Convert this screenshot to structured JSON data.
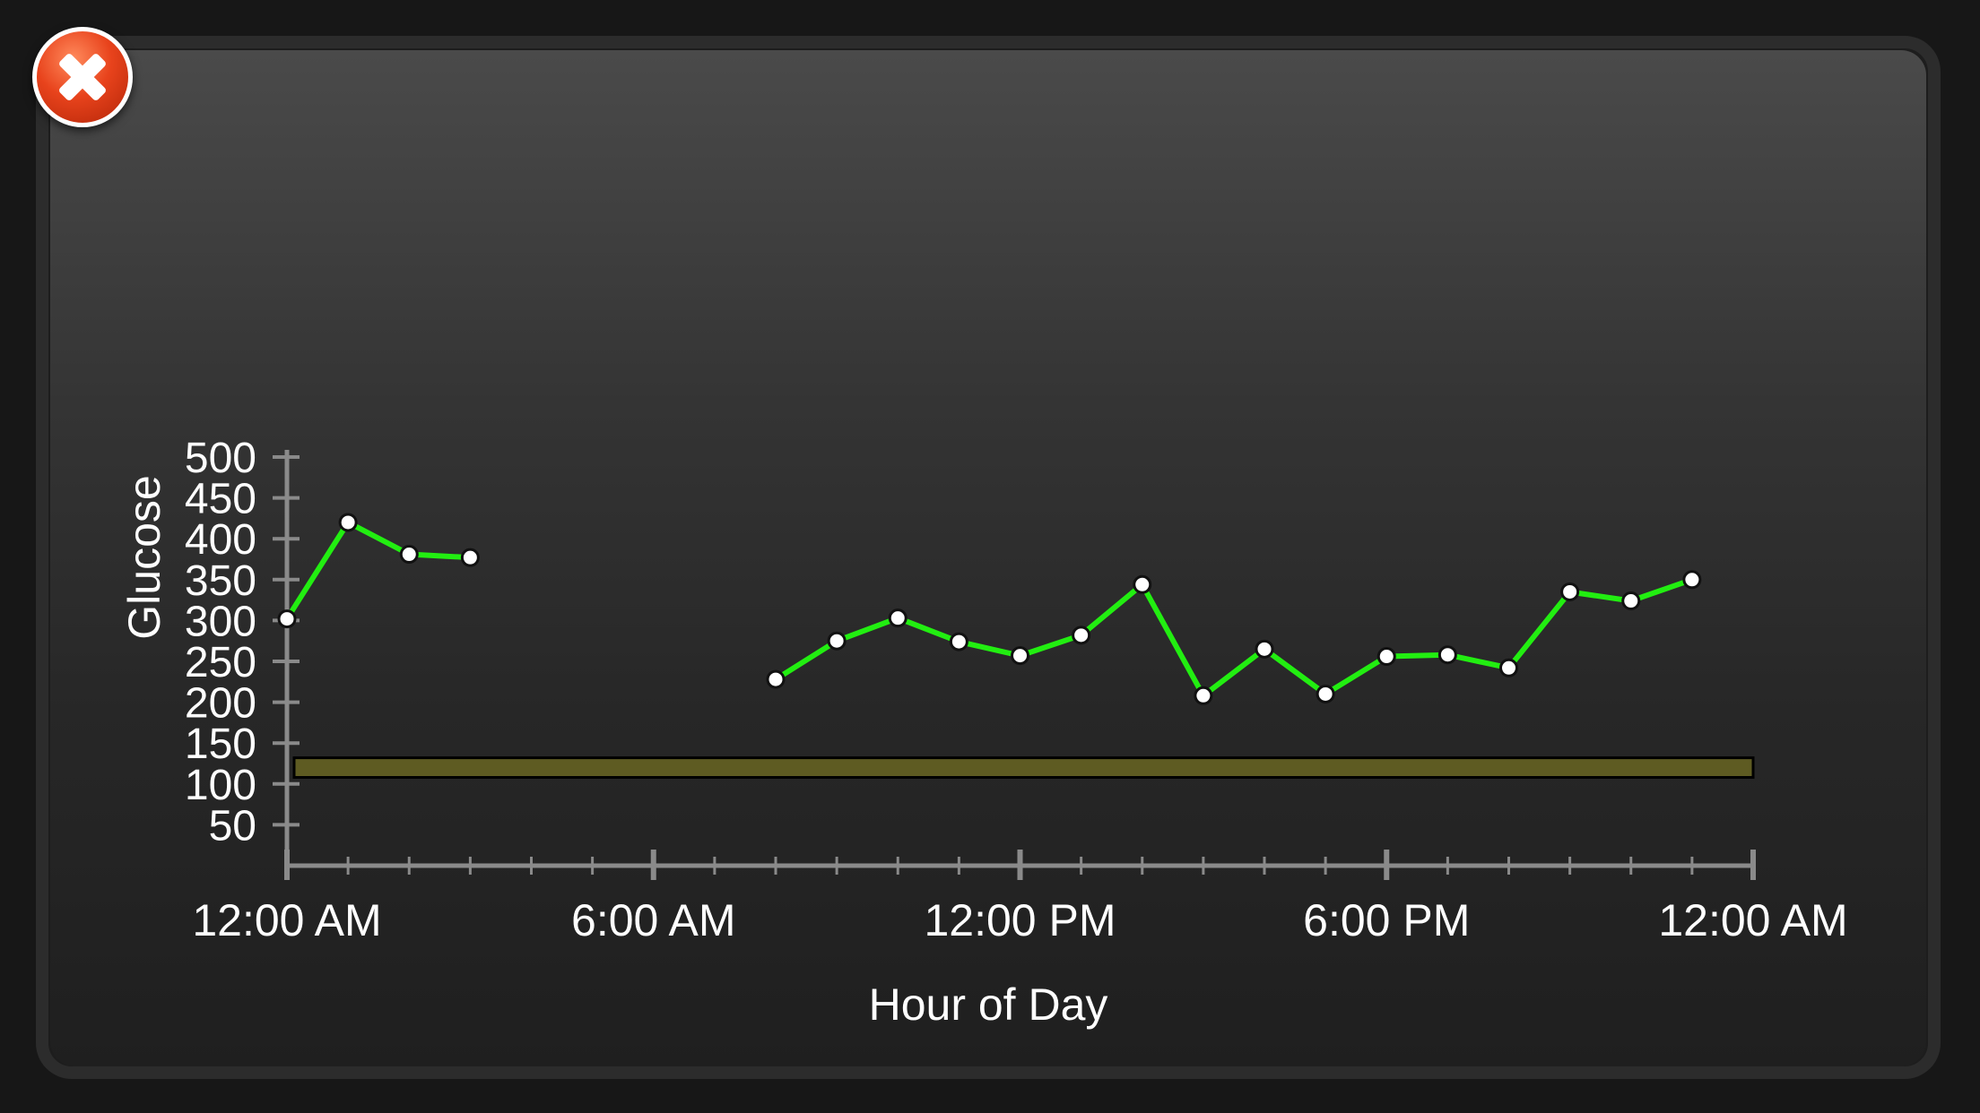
{
  "close_button": {
    "icon": "close-icon",
    "color": "#e8431c"
  },
  "chart_data": {
    "type": "line",
    "xlabel": "Hour of Day",
    "ylabel": "Glucose",
    "x_ticks": [
      "12:00 AM",
      "6:00 AM",
      "12:00 PM",
      "6:00 PM",
      "12:00 AM"
    ],
    "x_tick_hours": [
      0,
      6,
      12,
      18,
      24
    ],
    "xlim_hours": [
      0,
      24
    ],
    "y_ticks": [
      50,
      100,
      150,
      200,
      250,
      300,
      350,
      400,
      450,
      500
    ],
    "ylim": [
      0,
      500
    ],
    "target_range": {
      "low": 108,
      "high": 132,
      "color": "#5e5b22"
    },
    "line_color": "#22ee11",
    "series": [
      {
        "segments": [
          [
            {
              "hour": 0,
              "value": 302
            },
            {
              "hour": 1,
              "value": 420
            },
            {
              "hour": 2,
              "value": 381
            },
            {
              "hour": 3,
              "value": 377
            }
          ],
          [
            {
              "hour": 8,
              "value": 228
            },
            {
              "hour": 9,
              "value": 275
            },
            {
              "hour": 10,
              "value": 303
            },
            {
              "hour": 11,
              "value": 274
            },
            {
              "hour": 12,
              "value": 257
            },
            {
              "hour": 13,
              "value": 282
            },
            {
              "hour": 14,
              "value": 344
            },
            {
              "hour": 15,
              "value": 208
            },
            {
              "hour": 16,
              "value": 265
            },
            {
              "hour": 17,
              "value": 210
            },
            {
              "hour": 18,
              "value": 256
            },
            {
              "hour": 19,
              "value": 258
            },
            {
              "hour": 20,
              "value": 242
            },
            {
              "hour": 21,
              "value": 335
            },
            {
              "hour": 22,
              "value": 324
            },
            {
              "hour": 23,
              "value": 350
            }
          ]
        ]
      }
    ]
  }
}
